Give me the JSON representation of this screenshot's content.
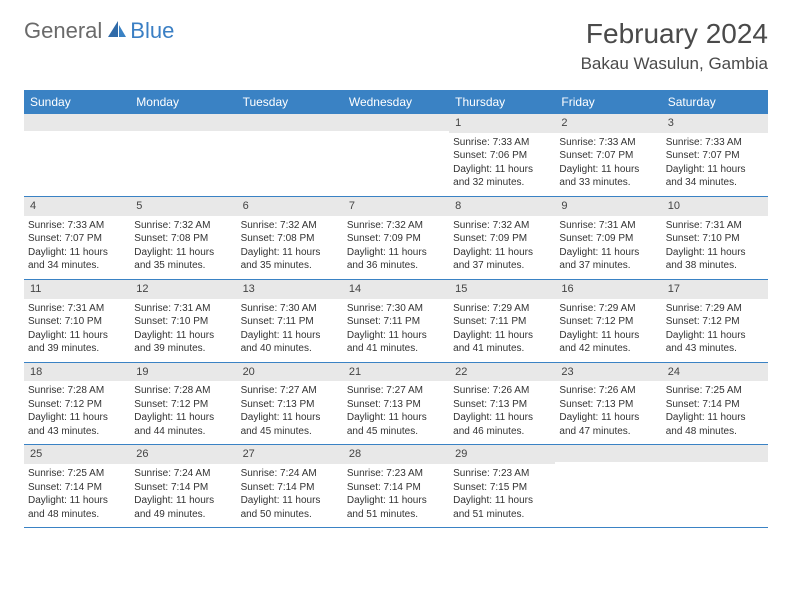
{
  "logo": {
    "text1": "General",
    "text2": "Blue"
  },
  "title": "February 2024",
  "location": "Bakau Wasulun, Gambia",
  "colors": {
    "header_bg": "#3a82c4",
    "daynum_bg": "#e8e8e8",
    "text_dark": "#4a4a4a",
    "logo_gray": "#6a6a6a",
    "logo_blue": "#3a7fc4"
  },
  "day_headers": [
    "Sunday",
    "Monday",
    "Tuesday",
    "Wednesday",
    "Thursday",
    "Friday",
    "Saturday"
  ],
  "weeks": [
    [
      {
        "n": "",
        "sr": "",
        "ss": "",
        "dl": ""
      },
      {
        "n": "",
        "sr": "",
        "ss": "",
        "dl": ""
      },
      {
        "n": "",
        "sr": "",
        "ss": "",
        "dl": ""
      },
      {
        "n": "",
        "sr": "",
        "ss": "",
        "dl": ""
      },
      {
        "n": "1",
        "sr": "Sunrise: 7:33 AM",
        "ss": "Sunset: 7:06 PM",
        "dl": "Daylight: 11 hours and 32 minutes."
      },
      {
        "n": "2",
        "sr": "Sunrise: 7:33 AM",
        "ss": "Sunset: 7:07 PM",
        "dl": "Daylight: 11 hours and 33 minutes."
      },
      {
        "n": "3",
        "sr": "Sunrise: 7:33 AM",
        "ss": "Sunset: 7:07 PM",
        "dl": "Daylight: 11 hours and 34 minutes."
      }
    ],
    [
      {
        "n": "4",
        "sr": "Sunrise: 7:33 AM",
        "ss": "Sunset: 7:07 PM",
        "dl": "Daylight: 11 hours and 34 minutes."
      },
      {
        "n": "5",
        "sr": "Sunrise: 7:32 AM",
        "ss": "Sunset: 7:08 PM",
        "dl": "Daylight: 11 hours and 35 minutes."
      },
      {
        "n": "6",
        "sr": "Sunrise: 7:32 AM",
        "ss": "Sunset: 7:08 PM",
        "dl": "Daylight: 11 hours and 35 minutes."
      },
      {
        "n": "7",
        "sr": "Sunrise: 7:32 AM",
        "ss": "Sunset: 7:09 PM",
        "dl": "Daylight: 11 hours and 36 minutes."
      },
      {
        "n": "8",
        "sr": "Sunrise: 7:32 AM",
        "ss": "Sunset: 7:09 PM",
        "dl": "Daylight: 11 hours and 37 minutes."
      },
      {
        "n": "9",
        "sr": "Sunrise: 7:31 AM",
        "ss": "Sunset: 7:09 PM",
        "dl": "Daylight: 11 hours and 37 minutes."
      },
      {
        "n": "10",
        "sr": "Sunrise: 7:31 AM",
        "ss": "Sunset: 7:10 PM",
        "dl": "Daylight: 11 hours and 38 minutes."
      }
    ],
    [
      {
        "n": "11",
        "sr": "Sunrise: 7:31 AM",
        "ss": "Sunset: 7:10 PM",
        "dl": "Daylight: 11 hours and 39 minutes."
      },
      {
        "n": "12",
        "sr": "Sunrise: 7:31 AM",
        "ss": "Sunset: 7:10 PM",
        "dl": "Daylight: 11 hours and 39 minutes."
      },
      {
        "n": "13",
        "sr": "Sunrise: 7:30 AM",
        "ss": "Sunset: 7:11 PM",
        "dl": "Daylight: 11 hours and 40 minutes."
      },
      {
        "n": "14",
        "sr": "Sunrise: 7:30 AM",
        "ss": "Sunset: 7:11 PM",
        "dl": "Daylight: 11 hours and 41 minutes."
      },
      {
        "n": "15",
        "sr": "Sunrise: 7:29 AM",
        "ss": "Sunset: 7:11 PM",
        "dl": "Daylight: 11 hours and 41 minutes."
      },
      {
        "n": "16",
        "sr": "Sunrise: 7:29 AM",
        "ss": "Sunset: 7:12 PM",
        "dl": "Daylight: 11 hours and 42 minutes."
      },
      {
        "n": "17",
        "sr": "Sunrise: 7:29 AM",
        "ss": "Sunset: 7:12 PM",
        "dl": "Daylight: 11 hours and 43 minutes."
      }
    ],
    [
      {
        "n": "18",
        "sr": "Sunrise: 7:28 AM",
        "ss": "Sunset: 7:12 PM",
        "dl": "Daylight: 11 hours and 43 minutes."
      },
      {
        "n": "19",
        "sr": "Sunrise: 7:28 AM",
        "ss": "Sunset: 7:12 PM",
        "dl": "Daylight: 11 hours and 44 minutes."
      },
      {
        "n": "20",
        "sr": "Sunrise: 7:27 AM",
        "ss": "Sunset: 7:13 PM",
        "dl": "Daylight: 11 hours and 45 minutes."
      },
      {
        "n": "21",
        "sr": "Sunrise: 7:27 AM",
        "ss": "Sunset: 7:13 PM",
        "dl": "Daylight: 11 hours and 45 minutes."
      },
      {
        "n": "22",
        "sr": "Sunrise: 7:26 AM",
        "ss": "Sunset: 7:13 PM",
        "dl": "Daylight: 11 hours and 46 minutes."
      },
      {
        "n": "23",
        "sr": "Sunrise: 7:26 AM",
        "ss": "Sunset: 7:13 PM",
        "dl": "Daylight: 11 hours and 47 minutes."
      },
      {
        "n": "24",
        "sr": "Sunrise: 7:25 AM",
        "ss": "Sunset: 7:14 PM",
        "dl": "Daylight: 11 hours and 48 minutes."
      }
    ],
    [
      {
        "n": "25",
        "sr": "Sunrise: 7:25 AM",
        "ss": "Sunset: 7:14 PM",
        "dl": "Daylight: 11 hours and 48 minutes."
      },
      {
        "n": "26",
        "sr": "Sunrise: 7:24 AM",
        "ss": "Sunset: 7:14 PM",
        "dl": "Daylight: 11 hours and 49 minutes."
      },
      {
        "n": "27",
        "sr": "Sunrise: 7:24 AM",
        "ss": "Sunset: 7:14 PM",
        "dl": "Daylight: 11 hours and 50 minutes."
      },
      {
        "n": "28",
        "sr": "Sunrise: 7:23 AM",
        "ss": "Sunset: 7:14 PM",
        "dl": "Daylight: 11 hours and 51 minutes."
      },
      {
        "n": "29",
        "sr": "Sunrise: 7:23 AM",
        "ss": "Sunset: 7:15 PM",
        "dl": "Daylight: 11 hours and 51 minutes."
      },
      {
        "n": "",
        "sr": "",
        "ss": "",
        "dl": ""
      },
      {
        "n": "",
        "sr": "",
        "ss": "",
        "dl": ""
      }
    ]
  ]
}
